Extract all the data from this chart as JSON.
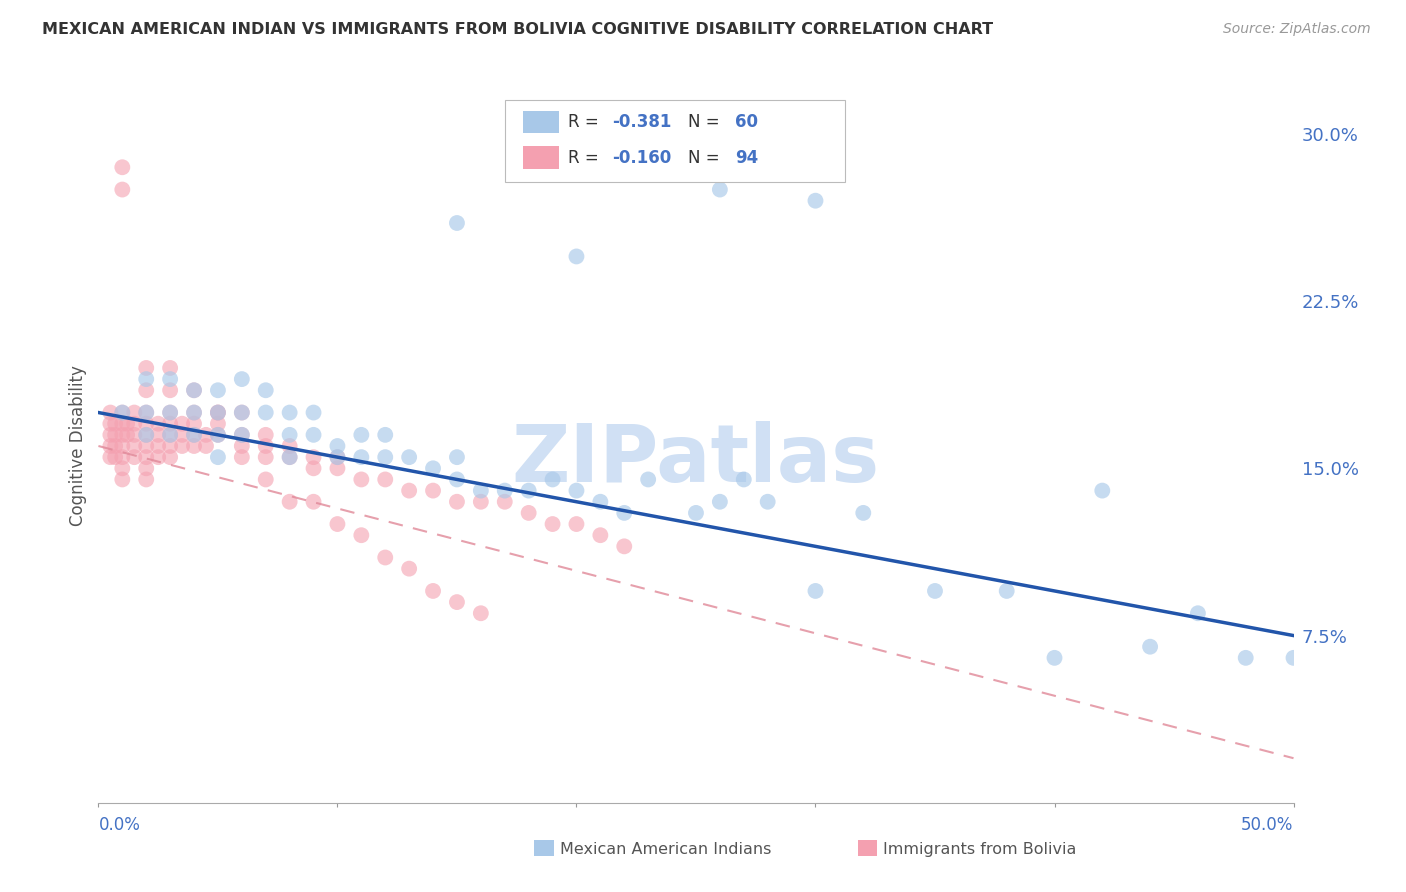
{
  "title": "MEXICAN AMERICAN INDIAN VS IMMIGRANTS FROM BOLIVIA COGNITIVE DISABILITY CORRELATION CHART",
  "source": "Source: ZipAtlas.com",
  "ylabel": "Cognitive Disability",
  "right_yticks": [
    0.075,
    0.15,
    0.225,
    0.3
  ],
  "right_yticklabels": [
    "7.5%",
    "15.0%",
    "22.5%",
    "30.0%"
  ],
  "xlim": [
    0.0,
    0.5
  ],
  "ylim": [
    0.0,
    0.32
  ],
  "series1_color": "#a8c8e8",
  "series2_color": "#f4a0b0",
  "trendline1_color": "#2255aa",
  "trendline2_color": "#e08898",
  "watermark_text": "ZIPatlas",
  "watermark_color": "#d0e0f4",
  "grid_color": "#cccccc",
  "title_color": "#333333",
  "axis_color": "#4472c4",
  "legend_r1": "-0.381",
  "legend_n1": "60",
  "legend_r2": "-0.160",
  "legend_n2": "94",
  "series1_x": [
    0.01,
    0.02,
    0.02,
    0.02,
    0.03,
    0.03,
    0.03,
    0.04,
    0.04,
    0.04,
    0.05,
    0.05,
    0.05,
    0.05,
    0.06,
    0.06,
    0.06,
    0.07,
    0.07,
    0.08,
    0.08,
    0.08,
    0.09,
    0.09,
    0.1,
    0.1,
    0.11,
    0.11,
    0.12,
    0.12,
    0.13,
    0.14,
    0.15,
    0.15,
    0.16,
    0.17,
    0.18,
    0.19,
    0.2,
    0.21,
    0.22,
    0.23,
    0.25,
    0.26,
    0.27,
    0.28,
    0.3,
    0.32,
    0.35,
    0.38,
    0.4,
    0.42,
    0.44,
    0.46,
    0.48,
    0.5,
    0.26,
    0.3,
    0.2,
    0.15
  ],
  "series1_y": [
    0.175,
    0.19,
    0.175,
    0.165,
    0.19,
    0.175,
    0.165,
    0.185,
    0.175,
    0.165,
    0.185,
    0.175,
    0.165,
    0.155,
    0.175,
    0.165,
    0.19,
    0.175,
    0.185,
    0.165,
    0.175,
    0.155,
    0.165,
    0.175,
    0.16,
    0.155,
    0.165,
    0.155,
    0.155,
    0.165,
    0.155,
    0.15,
    0.145,
    0.155,
    0.14,
    0.14,
    0.14,
    0.145,
    0.14,
    0.135,
    0.13,
    0.145,
    0.13,
    0.135,
    0.145,
    0.135,
    0.095,
    0.13,
    0.095,
    0.095,
    0.065,
    0.14,
    0.07,
    0.085,
    0.065,
    0.065,
    0.275,
    0.27,
    0.245,
    0.26
  ],
  "series2_x": [
    0.005,
    0.005,
    0.005,
    0.005,
    0.005,
    0.007,
    0.007,
    0.007,
    0.007,
    0.01,
    0.01,
    0.01,
    0.01,
    0.01,
    0.01,
    0.01,
    0.012,
    0.012,
    0.015,
    0.015,
    0.015,
    0.015,
    0.015,
    0.02,
    0.02,
    0.02,
    0.02,
    0.02,
    0.02,
    0.02,
    0.025,
    0.025,
    0.025,
    0.025,
    0.03,
    0.03,
    0.03,
    0.03,
    0.03,
    0.035,
    0.035,
    0.035,
    0.04,
    0.04,
    0.04,
    0.04,
    0.045,
    0.045,
    0.05,
    0.05,
    0.05,
    0.06,
    0.06,
    0.06,
    0.07,
    0.07,
    0.07,
    0.08,
    0.08,
    0.09,
    0.09,
    0.1,
    0.1,
    0.11,
    0.12,
    0.13,
    0.14,
    0.15,
    0.16,
    0.17,
    0.18,
    0.19,
    0.2,
    0.21,
    0.22,
    0.01,
    0.01,
    0.02,
    0.02,
    0.03,
    0.03,
    0.04,
    0.05,
    0.06,
    0.07,
    0.08,
    0.09,
    0.1,
    0.11,
    0.12,
    0.13,
    0.14,
    0.15,
    0.16
  ],
  "series2_y": [
    0.175,
    0.17,
    0.165,
    0.16,
    0.155,
    0.17,
    0.165,
    0.16,
    0.155,
    0.175,
    0.17,
    0.165,
    0.16,
    0.155,
    0.15,
    0.145,
    0.17,
    0.165,
    0.175,
    0.17,
    0.165,
    0.16,
    0.155,
    0.175,
    0.17,
    0.165,
    0.16,
    0.155,
    0.15,
    0.145,
    0.17,
    0.165,
    0.16,
    0.155,
    0.175,
    0.17,
    0.165,
    0.16,
    0.155,
    0.17,
    0.165,
    0.16,
    0.175,
    0.17,
    0.165,
    0.16,
    0.165,
    0.16,
    0.175,
    0.17,
    0.165,
    0.165,
    0.16,
    0.155,
    0.165,
    0.16,
    0.155,
    0.16,
    0.155,
    0.155,
    0.15,
    0.155,
    0.15,
    0.145,
    0.145,
    0.14,
    0.14,
    0.135,
    0.135,
    0.135,
    0.13,
    0.125,
    0.125,
    0.12,
    0.115,
    0.285,
    0.275,
    0.195,
    0.185,
    0.195,
    0.185,
    0.185,
    0.175,
    0.175,
    0.145,
    0.135,
    0.135,
    0.125,
    0.12,
    0.11,
    0.105,
    0.095,
    0.09,
    0.085
  ]
}
